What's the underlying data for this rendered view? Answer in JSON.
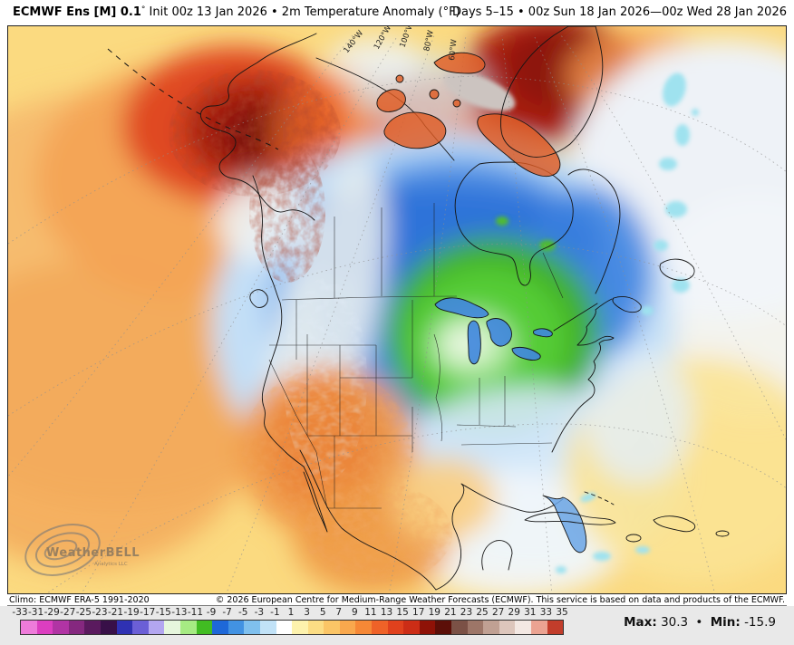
{
  "header": {
    "title_bold": "ECMWF Ens [M] 0.1",
    "title_degree": "°",
    "title_rest": " Init 00z 13 Jan 2026 • 2m Temperature Anomaly (°F)",
    "right": "Days 5–15 • 00z Sun 18 Jan 2026—00z Wed 28 Jan 2026"
  },
  "credits": {
    "climo": "Climo: ECMWF ERA-5 1991-2020",
    "copyright": "© 2026 European Centre for Medium-Range Weather Forecasts (ECMWF). This service is based on data and products of the ECMWF."
  },
  "stats": {
    "max_label": "Max:",
    "max_value": "30.3",
    "dot": "•",
    "min_label": "Min:",
    "min_value": "-15.9"
  },
  "colorbar": {
    "unit": "°F anomaly",
    "ticks": [
      "-33",
      "-31",
      "-29",
      "-27",
      "-25",
      "-23",
      "-21",
      "-19",
      "-17",
      "-15",
      "-13",
      "-11",
      "-9",
      "-7",
      "-5",
      "-3",
      "-1",
      "1",
      "3",
      "5",
      "7",
      "9",
      "11",
      "13",
      "15",
      "17",
      "19",
      "21",
      "23",
      "25",
      "27",
      "29",
      "31",
      "33",
      "35"
    ],
    "colors": [
      "#ee7bda",
      "#dc3ec0",
      "#b134a4",
      "#85287f",
      "#5a1a5e",
      "#381048",
      "#2f31b3",
      "#6b5fd6",
      "#b3a6f0",
      "#e6f6dd",
      "#a6eb83",
      "#41bc22",
      "#1e68d8",
      "#4292e2",
      "#7fc0ee",
      "#c1e2f7",
      "#ffffff",
      "#fdf2ad",
      "#fcdd84",
      "#fbc566",
      "#f9a84d",
      "#f68836",
      "#ef6228",
      "#e0411d",
      "#cc2d16",
      "#8f1207",
      "#5c0f08",
      "#7b5146",
      "#9d7668",
      "#c0a093",
      "#ddc6bc",
      "#f3e8e3",
      "#eba392",
      "#c23d2b"
    ]
  },
  "map": {
    "meridian_labels": [
      "140°W",
      "120°W",
      "100°W",
      "80°W",
      "60°W"
    ],
    "logo": {
      "name": "WeatherBELL",
      "subtitle": "Analytics LLC"
    },
    "key_colors": {
      "warm_base": "#fbda80",
      "cold_core_green": "#55cc35",
      "cold_blue": "#4b8ce2",
      "hot_red": "#a61c0c",
      "ice_gray": "#ccc4c0"
    }
  }
}
